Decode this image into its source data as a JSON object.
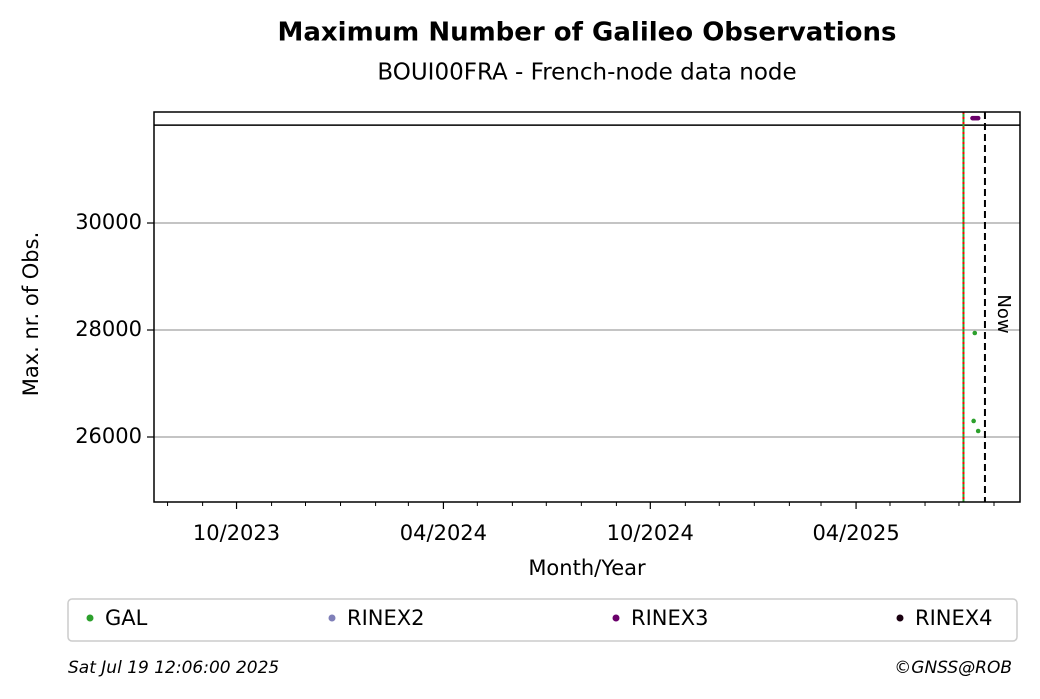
{
  "chart_data": {
    "type": "scatter",
    "title": "Maximum Number of Galileo Observations",
    "subtitle": "BOUI00FRA - French-node data node",
    "x_label": "Month/Year",
    "y_label": "Max. nr. of Obs.",
    "xlim": [
      "2023-07-20",
      "2025-08-24"
    ],
    "ylim": [
      24785,
      32075
    ],
    "yticks": [
      26000,
      28000,
      30000
    ],
    "xticks": [
      {
        "value": "2023-10-01",
        "label": "10/2023"
      },
      {
        "value": "2024-04-01",
        "label": "04/2024"
      },
      {
        "value": "2024-10-01",
        "label": "10/2024"
      },
      {
        "value": "2025-04-01",
        "label": "04/2025"
      }
    ],
    "xminor_ticks": [
      "2023-08-01",
      "2023-09-01",
      "2023-11-01",
      "2023-12-01",
      "2024-01-01",
      "2024-02-01",
      "2024-03-01",
      "2024-05-01",
      "2024-06-01",
      "2024-07-01",
      "2024-08-01",
      "2024-09-01",
      "2024-11-01",
      "2024-12-01",
      "2025-01-01",
      "2025-02-01",
      "2025-03-01",
      "2025-05-01",
      "2025-06-01",
      "2025-07-01",
      "2025-08-01"
    ],
    "grid": true,
    "hline": 31830,
    "vlines": [
      {
        "x": "2025-07-05",
        "color": "#2ca02c",
        "style": "solid"
      },
      {
        "x": "2025-07-05",
        "color": "#ff0000",
        "style": "dotted"
      }
    ],
    "now": {
      "x": "2025-07-24",
      "label": "Now"
    },
    "series": [
      {
        "name": "GAL",
        "color": "#2ca02c",
        "x": [
          "2025-07-14",
          "2025-07-15",
          "2025-07-18"
        ],
        "values": [
          26300,
          27944,
          26112
        ]
      },
      {
        "name": "RINEX2",
        "color": "#7f7fb8",
        "x": [],
        "values": []
      },
      {
        "name": "RINEX3",
        "color": "#6a006a",
        "x": [
          "2025-07-13",
          "2025-07-14",
          "2025-07-15",
          "2025-07-16",
          "2025-07-17",
          "2025-07-18"
        ],
        "values": [
          31960,
          31960,
          31960,
          31960,
          31960,
          31960
        ]
      },
      {
        "name": "RINEX4",
        "color": "#1a0010",
        "x": [],
        "values": []
      }
    ],
    "footer_left": "Sat Jul 19 12:06:00 2025",
    "footer_right": "©GNSS@ROB"
  }
}
